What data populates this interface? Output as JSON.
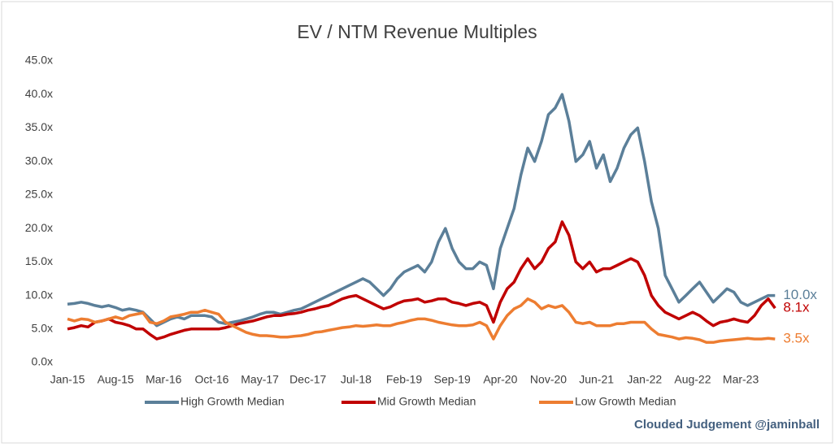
{
  "chart_data": {
    "type": "line",
    "title": "EV / NTM Revenue Multiples",
    "source": "Clouded Judgement @jaminball",
    "categories": [
      "Jan-15",
      null,
      null,
      null,
      null,
      null,
      null,
      "Aug-15",
      null,
      null,
      null,
      null,
      null,
      null,
      "Mar-16",
      null,
      null,
      null,
      null,
      null,
      null,
      "Oct-16",
      null,
      null,
      null,
      null,
      null,
      null,
      "May-17",
      null,
      null,
      null,
      null,
      null,
      null,
      "Dec-17",
      null,
      null,
      null,
      null,
      null,
      null,
      "Jul-18",
      null,
      null,
      null,
      null,
      null,
      null,
      "Feb-19",
      null,
      null,
      null,
      null,
      null,
      null,
      "Sep-19",
      null,
      null,
      null,
      null,
      null,
      null,
      "Apr-20",
      null,
      null,
      null,
      null,
      null,
      null,
      "Nov-20",
      null,
      null,
      null,
      null,
      null,
      null,
      "Jun-21",
      null,
      null,
      null,
      null,
      null,
      null,
      "Jan-22",
      null,
      null,
      null,
      null,
      null,
      null,
      "Aug-22",
      null,
      null,
      null,
      null,
      null,
      null,
      "Mar-23",
      null,
      null,
      null,
      null,
      null
    ],
    "ylim": [
      0,
      45
    ],
    "yticks": [
      {
        "value": 0,
        "label": "0.0x"
      },
      {
        "value": 5,
        "label": "5.0x"
      },
      {
        "value": 10,
        "label": "10.0x"
      },
      {
        "value": 15,
        "label": "15.0x"
      },
      {
        "value": 20,
        "label": "20.0x"
      },
      {
        "value": 25,
        "label": "25.0x"
      },
      {
        "value": 30,
        "label": "30.0x"
      },
      {
        "value": 35,
        "label": "35.0x"
      },
      {
        "value": 40,
        "label": "40.0x"
      },
      {
        "value": 45,
        "label": "45.0x"
      }
    ],
    "grid": false,
    "legend": "bottom",
    "series": [
      {
        "name": "High Growth Median",
        "color": "#5b7f99",
        "end_label": "10.0x",
        "values": [
          8.7,
          8.8,
          9,
          8.8,
          8.5,
          8.3,
          8.5,
          8.2,
          7.8,
          8,
          7.8,
          7.5,
          6.5,
          5.5,
          6,
          6.5,
          6.8,
          6.5,
          7,
          7,
          7,
          6.8,
          6,
          5.8,
          6,
          6.2,
          6.5,
          6.8,
          7.2,
          7.5,
          7.5,
          7.2,
          7.5,
          7.8,
          8,
          8.5,
          9,
          9.5,
          10,
          10.5,
          11,
          11.5,
          12,
          12.5,
          12,
          11,
          10,
          11,
          12.5,
          13.5,
          14,
          14.5,
          13.5,
          15,
          18,
          20,
          17,
          15,
          14,
          14,
          15,
          14.5,
          11,
          17,
          20,
          23,
          28,
          32,
          30,
          33,
          37,
          38,
          40,
          36,
          30,
          31,
          33,
          29,
          31,
          27,
          29,
          32,
          34,
          35,
          30,
          24,
          20,
          13,
          11,
          9,
          10,
          11,
          12,
          10.5,
          9,
          10,
          11,
          10.5,
          9,
          8.5,
          9,
          9.5,
          10,
          10.0
        ]
      },
      {
        "name": "Mid Growth Median",
        "color": "#c00000",
        "end_label": "8.1x",
        "values": [
          5,
          5.2,
          5.5,
          5.3,
          6,
          6.2,
          6.5,
          6,
          5.8,
          5.5,
          5,
          5,
          4.2,
          3.5,
          3.8,
          4.2,
          4.5,
          4.8,
          5,
          5,
          5,
          5,
          5,
          5.2,
          5.5,
          5.8,
          6,
          6.2,
          6.5,
          6.8,
          7,
          7,
          7.2,
          7.3,
          7.5,
          7.8,
          8,
          8.3,
          8.5,
          9,
          9.5,
          9.8,
          10,
          9.5,
          9,
          8.5,
          8,
          8.3,
          8.8,
          9.2,
          9.3,
          9.5,
          9,
          9.2,
          9.5,
          9.5,
          9,
          8.8,
          8.5,
          8.8,
          9,
          8.5,
          6,
          9,
          11,
          12,
          14,
          15.5,
          14,
          15,
          17,
          18,
          21,
          19,
          15,
          14,
          15,
          13.5,
          14,
          14,
          14.5,
          15,
          15.5,
          15,
          13,
          10,
          8.5,
          7.5,
          7,
          6.5,
          7,
          7.5,
          7,
          6.2,
          5.5,
          6,
          6.2,
          6.5,
          6.2,
          6,
          7,
          8.5,
          9.5,
          8.1
        ]
      },
      {
        "name": "Low Growth Median",
        "color": "#ed7d31",
        "end_label": "3.5x",
        "values": [
          6.5,
          6.2,
          6.5,
          6.4,
          6,
          6.2,
          6.5,
          6.8,
          6.5,
          7,
          7.2,
          7.4,
          6,
          5.8,
          6.2,
          6.8,
          7,
          7.2,
          7.5,
          7.5,
          7.8,
          7.5,
          7.2,
          6,
          5.5,
          5,
          4.5,
          4.2,
          4,
          4,
          3.9,
          3.8,
          3.8,
          3.9,
          4,
          4.2,
          4.5,
          4.6,
          4.8,
          5,
          5.2,
          5.3,
          5.5,
          5.4,
          5.5,
          5.6,
          5.5,
          5.5,
          5.8,
          6,
          6.3,
          6.5,
          6.5,
          6.3,
          6,
          5.8,
          5.6,
          5.5,
          5.5,
          5.6,
          6,
          5.5,
          3.5,
          5.5,
          7,
          8,
          8.5,
          9.5,
          9,
          8,
          8.5,
          8.2,
          8.5,
          7.5,
          6,
          5.8,
          6,
          5.5,
          5.5,
          5.5,
          5.8,
          5.8,
          6,
          6,
          6,
          5,
          4.2,
          4,
          3.8,
          3.5,
          3.7,
          3.6,
          3.4,
          3,
          3,
          3.2,
          3.3,
          3.4,
          3.5,
          3.6,
          3.5,
          3.5,
          3.6,
          3.5
        ]
      }
    ]
  }
}
